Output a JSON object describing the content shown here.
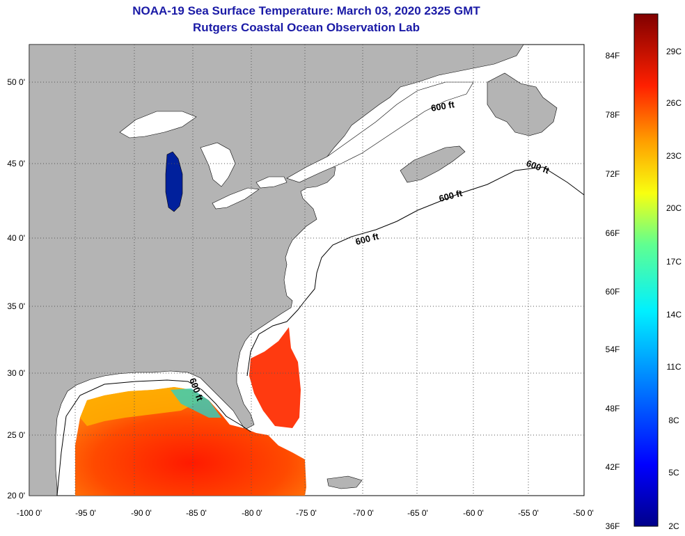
{
  "title_line1": "NOAA-19 Sea Surface Temperature:  March 03, 2020 2325 GMT",
  "title_line2": "Rutgers Coastal Ocean Observation Lab",
  "longitude_labels": [
    "-100 0'",
    "-95 0'",
    "-90 0'",
    "-85 0'",
    "-80 0'",
    "-75 0'",
    "-70 0'",
    "-65 0'",
    "-60 0'",
    "-55 0'",
    "-50 0'"
  ],
  "latitude_labels": [
    "50 0'",
    "45 0'",
    "40 0'",
    "35 0'",
    "30 0'",
    "25 0'",
    "20 0'"
  ],
  "contour_label": "600 ft",
  "colorbar": {
    "fahrenheit_labels": [
      "84F",
      "78F",
      "72F",
      "66F",
      "60F",
      "54F",
      "48F",
      "42F",
      "36F"
    ],
    "celsius_labels": [
      "29C",
      "26C",
      "23C",
      "20C",
      "17C",
      "14C",
      "11C",
      "8C",
      "5C",
      "2C"
    ]
  },
  "colors": {
    "land": "#b4b4b4",
    "ocean": "#ffffff",
    "title": "#1a1aa6",
    "gridline": "#555555"
  }
}
